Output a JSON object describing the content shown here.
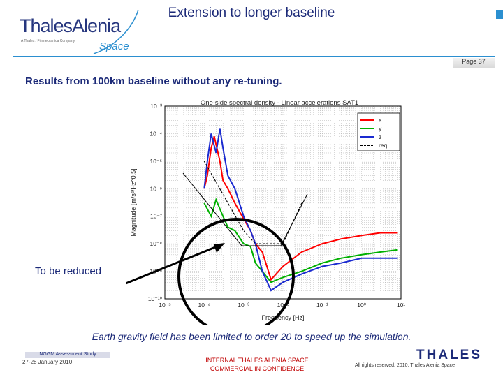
{
  "logo": {
    "brand": "ThalesAlenia",
    "tagline": "A Thales / Finmeccanica Company",
    "space": "Space"
  },
  "title": "Extension to longer baseline",
  "page_label": "Page 37",
  "subtitle": "Results from 100km baseline without any re-tuning.",
  "callout": "To be reduced",
  "caption": "Earth gravity field has been limited to order 20 to speed up the simulation.",
  "footer": {
    "study": "NGGM Assessment Study",
    "date": "27-28 January 2010",
    "internal_line1": "INTERNAL THALES ALENIA SPACE",
    "internal_line2": "COMMERCIAL IN CONFIDENCE",
    "thales": "THALES",
    "rights": "All rights reserved, 2010, Thales Alenia Space"
  },
  "colors": {
    "accent": "#2b8fd0",
    "navy": "#1c2a78",
    "confidential": "#c00000"
  },
  "chart_data": {
    "type": "line",
    "title": "One-side spectral density - Linear accelerations SAT1",
    "xlabel": "Frequency [Hz]",
    "ylabel": "Magnitude [m/s²/Hz^0.5]",
    "xscale": "log",
    "yscale": "log",
    "xlim": [
      1e-05,
      10
    ],
    "ylim": [
      1e-10,
      0.001
    ],
    "x_ticks": [
      "10⁻⁵",
      "10⁻⁴",
      "10⁻³",
      "10⁻²",
      "10⁻¹",
      "10⁰",
      "10¹"
    ],
    "y_ticks": [
      "10⁻³",
      "10⁻⁴",
      "10⁻⁵",
      "10⁻⁶",
      "10⁻⁷",
      "10⁻⁸",
      "10⁻⁹",
      "10⁻¹⁰"
    ],
    "grid": true,
    "legend_position": "top-right",
    "series": [
      {
        "name": "x",
        "color": "#ff0000",
        "x": [
          0.0001,
          0.00012,
          0.00015,
          0.00018,
          0.0002,
          0.00025,
          0.0003,
          0.0004,
          0.0006,
          0.001,
          0.0015,
          0.002,
          0.003,
          0.005,
          0.01,
          0.03,
          0.1,
          0.3,
          1,
          3,
          8
        ],
        "y": [
          1e-06,
          3e-06,
          3e-05,
          8e-05,
          4e-05,
          1e-05,
          2e-06,
          1e-06,
          3e-07,
          8e-08,
          3e-08,
          1e-08,
          5e-09,
          5e-10,
          1.5e-09,
          5e-09,
          1e-08,
          1.5e-08,
          2e-08,
          2.5e-08,
          2.5e-08
        ]
      },
      {
        "name": "y",
        "color": "#00b000",
        "x": [
          0.0001,
          0.00015,
          0.0002,
          0.0003,
          0.0004,
          0.0006,
          0.001,
          0.0015,
          0.002,
          0.003,
          0.005,
          0.01,
          0.03,
          0.1,
          0.3,
          1,
          3,
          8
        ],
        "y": [
          3e-07,
          1e-07,
          4e-07,
          1e-07,
          4e-08,
          3e-08,
          1e-08,
          8e-09,
          2e-09,
          1e-09,
          4e-10,
          6e-10,
          1e-09,
          2e-09,
          3e-09,
          4e-09,
          5e-09,
          6e-09
        ]
      },
      {
        "name": "z",
        "color": "#1a2ad0",
        "x": [
          0.0001,
          0.00012,
          0.00015,
          0.00017,
          0.0002,
          0.00025,
          0.0003,
          0.0004,
          0.0006,
          0.001,
          0.0015,
          0.002,
          0.003,
          0.005,
          0.01,
          0.03,
          0.1,
          0.3,
          1,
          3,
          8
        ],
        "y": [
          1e-06,
          1e-05,
          0.0001,
          5e-05,
          2e-05,
          0.00015,
          3e-05,
          3e-06,
          1e-06,
          1e-07,
          3e-08,
          1e-08,
          1e-09,
          2e-10,
          4e-10,
          8e-10,
          1.5e-09,
          2e-09,
          3e-09,
          3e-09,
          3e-09
        ]
      },
      {
        "name": "req",
        "color": "#000000",
        "x": [
          0.0001,
          0.001,
          0.002,
          0.005,
          0.01,
          0.03
        ],
        "y": [
          1e-05,
          3e-08,
          1e-08,
          1e-08,
          1e-08,
          3e-07
        ]
      }
    ]
  }
}
